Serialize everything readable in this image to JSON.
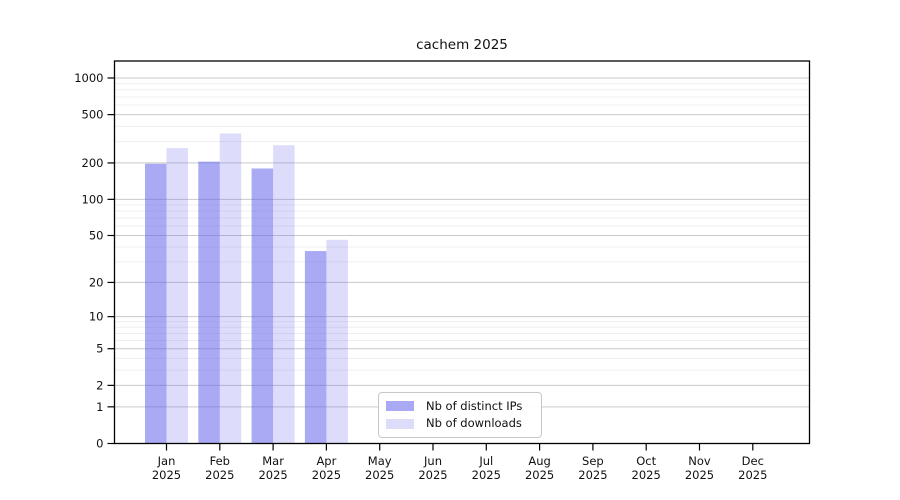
{
  "title": "cachem 2025",
  "colors": {
    "background": "#ffffff",
    "axis": "#000000",
    "text": "#111111",
    "grid_major": "#c9c9c9",
    "grid_minor": "#efefef",
    "legend_border": "#c8c8c8",
    "ips_bar": "rgba(100,100,235,0.55)",
    "downloads_bar": "rgba(100,100,235,0.22)"
  },
  "chart_data": {
    "type": "bar",
    "title": "cachem 2025",
    "x_year": "2025",
    "categories": [
      "Jan",
      "Feb",
      "Mar",
      "Apr",
      "May",
      "Jun",
      "Jul",
      "Aug",
      "Sep",
      "Oct",
      "Nov",
      "Dec"
    ],
    "series": [
      {
        "name": "Nb of distinct IPs",
        "color": "rgba(100,100,235,0.55)",
        "values": [
          197,
          205,
          180,
          37,
          0,
          0,
          0,
          0,
          0,
          0,
          0,
          0
        ]
      },
      {
        "name": "Nb of downloads",
        "color": "rgba(100,100,235,0.22)",
        "values": [
          265,
          350,
          280,
          46,
          0,
          0,
          0,
          0,
          0,
          0,
          0,
          0
        ]
      }
    ],
    "y_scale": "log1p",
    "ylim": [
      0,
      1380
    ],
    "y_ticks": [
      0,
      1,
      2,
      5,
      10,
      20,
      50,
      100,
      200,
      500,
      1000
    ],
    "y_tick_labels": [
      "0",
      "1",
      "2",
      "5",
      "10",
      "20",
      "50",
      "100",
      "200",
      "500",
      "1000"
    ],
    "y_minor_ticks": [
      3,
      4,
      6,
      7,
      8,
      9,
      30,
      40,
      60,
      70,
      80,
      90,
      300,
      400,
      600,
      700,
      800,
      900
    ],
    "grid": "horizontal major+minor",
    "legend_position": "lower center inside plot"
  }
}
